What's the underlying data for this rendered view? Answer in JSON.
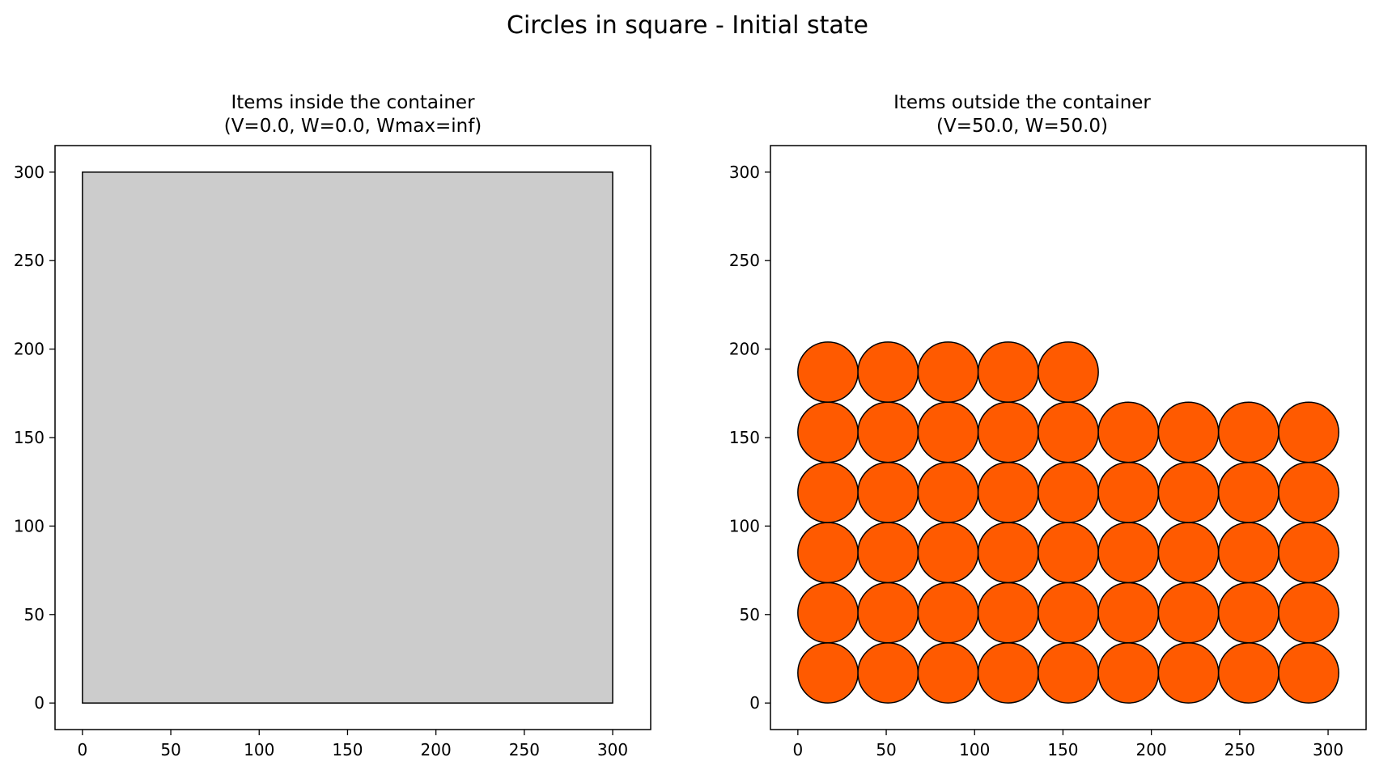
{
  "figure": {
    "suptitle": "Circles in square - Initial state"
  },
  "chart_data": [
    {
      "type": "scatter",
      "title_line1": "Items inside the container",
      "title_line2": "(V=0.0, W=0.0, Wmax=inf)",
      "xlabel": "",
      "ylabel": "",
      "xlim": [
        -15.5,
        321.5
      ],
      "ylim": [
        -15,
        315
      ],
      "xticks": [
        0,
        50,
        100,
        150,
        200,
        250,
        300
      ],
      "yticks": [
        0,
        50,
        100,
        150,
        200,
        250,
        300
      ],
      "grid": false,
      "container": {
        "shape": "square",
        "x": [
          0,
          300
        ],
        "y": [
          0,
          300
        ],
        "fill": "#cccccc",
        "edge": "#000000"
      },
      "circles": {
        "radius": 17,
        "fill": "#ff5a00",
        "edge": "#000000",
        "centers": []
      }
    },
    {
      "type": "scatter",
      "title_line1": "Items outside the container",
      "title_line2": "(V=50.0, W=50.0)",
      "xlabel": "",
      "ylabel": "",
      "xlim": [
        -15.5,
        321.5
      ],
      "ylim": [
        -15,
        315
      ],
      "xticks": [
        0,
        50,
        100,
        150,
        200,
        250,
        300
      ],
      "yticks": [
        0,
        50,
        100,
        150,
        200,
        250,
        300
      ],
      "grid": false,
      "container": null,
      "circles": {
        "radius": 17,
        "fill": "#ff5a00",
        "edge": "#000000",
        "centers": [
          [
            17,
            17
          ],
          [
            51,
            17
          ],
          [
            85,
            17
          ],
          [
            119,
            17
          ],
          [
            153,
            17
          ],
          [
            187,
            17
          ],
          [
            221,
            17
          ],
          [
            255,
            17
          ],
          [
            289,
            17
          ],
          [
            17,
            51
          ],
          [
            51,
            51
          ],
          [
            85,
            51
          ],
          [
            119,
            51
          ],
          [
            153,
            51
          ],
          [
            187,
            51
          ],
          [
            221,
            51
          ],
          [
            255,
            51
          ],
          [
            289,
            51
          ],
          [
            17,
            85
          ],
          [
            51,
            85
          ],
          [
            85,
            85
          ],
          [
            119,
            85
          ],
          [
            153,
            85
          ],
          [
            187,
            85
          ],
          [
            221,
            85
          ],
          [
            255,
            85
          ],
          [
            289,
            85
          ],
          [
            17,
            119
          ],
          [
            51,
            119
          ],
          [
            85,
            119
          ],
          [
            119,
            119
          ],
          [
            153,
            119
          ],
          [
            187,
            119
          ],
          [
            221,
            119
          ],
          [
            255,
            119
          ],
          [
            289,
            119
          ],
          [
            17,
            153
          ],
          [
            51,
            153
          ],
          [
            85,
            153
          ],
          [
            119,
            153
          ],
          [
            153,
            153
          ],
          [
            187,
            153
          ],
          [
            221,
            153
          ],
          [
            255,
            153
          ],
          [
            289,
            153
          ],
          [
            17,
            187
          ],
          [
            51,
            187
          ],
          [
            85,
            187
          ],
          [
            119,
            187
          ],
          [
            153,
            187
          ]
        ]
      }
    }
  ]
}
